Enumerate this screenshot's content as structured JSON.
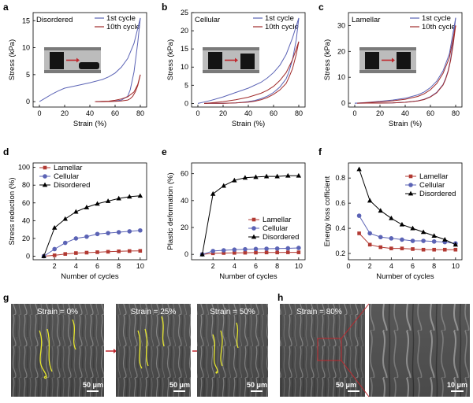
{
  "colors": {
    "lamellar": "#b23a33",
    "cellular": "#5b63b5",
    "disordered": "#000000",
    "first_cycle": "#5b63b5",
    "tenth_cycle": "#a02a2a",
    "arrow": "#c0272d",
    "highlight": "#e6e62e"
  },
  "panels_top": [
    {
      "letter": "a",
      "title": "Disordered",
      "xlabel": "Strain (%)",
      "ylabel": "Stress (kPa)",
      "xlim": [
        -5,
        85
      ],
      "ylim": [
        -1,
        16.5
      ],
      "xticks": [
        0,
        20,
        40,
        60,
        80
      ],
      "yticks": [
        0,
        5,
        10,
        15
      ],
      "legend": [
        "1st cycle",
        "10th cycle"
      ]
    },
    {
      "letter": "b",
      "title": "Cellular",
      "xlabel": "Strain (%)",
      "ylabel": "Stress (kPa)",
      "xlim": [
        -5,
        85
      ],
      "ylim": [
        -1,
        25
      ],
      "xticks": [
        0,
        20,
        40,
        60,
        80
      ],
      "yticks": [
        0,
        5,
        10,
        15,
        20,
        25
      ],
      "legend": [
        "1st cycle",
        "10th cycle"
      ]
    },
    {
      "letter": "c",
      "title": "Lamellar",
      "xlabel": "Strain (%)",
      "ylabel": "Stress (kPa)",
      "xlim": [
        -5,
        85
      ],
      "ylim": [
        -1.5,
        35
      ],
      "xticks": [
        0,
        20,
        40,
        60,
        80
      ],
      "yticks": [
        0,
        10,
        20,
        30
      ],
      "legend": [
        "1st cycle",
        "10th cycle"
      ]
    }
  ],
  "panels_mid": [
    {
      "letter": "d",
      "xlabel": "Number of cycles",
      "ylabel": "Stress reduction (%)",
      "xlim": [
        0,
        10.6
      ],
      "ylim": [
        -4,
        105
      ],
      "xticks": [
        2,
        4,
        6,
        8,
        10
      ],
      "yticks": [
        0,
        20,
        40,
        60,
        80,
        100
      ],
      "legend": [
        "Lamellar",
        "Cellular",
        "Disordered"
      ]
    },
    {
      "letter": "e",
      "xlabel": "Number of cycles",
      "ylabel": "Plastic deformation (%)",
      "xlim": [
        0,
        10.6
      ],
      "ylim": [
        -4,
        68
      ],
      "xticks": [
        2,
        4,
        6,
        8,
        10
      ],
      "yticks": [
        0,
        20,
        40,
        60
      ],
      "legend": [
        "Lamellar",
        "Cellular",
        "Disordered"
      ]
    },
    {
      "letter": "f",
      "xlabel": "Number of cycles",
      "ylabel": "Energy loss cofficient",
      "xlim": [
        0,
        10.6
      ],
      "ylim": [
        0.15,
        0.92
      ],
      "xticks": [
        0,
        2,
        4,
        6,
        8,
        10
      ],
      "yticks": [
        0.2,
        0.4,
        0.6,
        0.8
      ],
      "legend": [
        "Lamellar",
        "Cellular",
        "Disordered"
      ]
    }
  ],
  "chart_data": [
    {
      "type": "line",
      "panel": "a",
      "title": "Disordered",
      "xlabel": "Strain (%)",
      "ylabel": "Stress (kPa)",
      "series": [
        {
          "name": "1st cycle",
          "loading": {
            "x": [
              0,
              5,
              10,
              15,
              20,
              30,
              40,
              50,
              55,
              60,
              65,
              70,
              75,
              80
            ],
            "y": [
              0,
              0.7,
              1.4,
              2.0,
              2.5,
              3.0,
              3.5,
              4.1,
              4.6,
              5.3,
              6.4,
              8.0,
              10.8,
              15.5
            ]
          },
          "unloading": {
            "x": [
              80,
              78,
              75,
              72,
              70,
              65,
              60,
              55,
              50,
              45
            ],
            "y": [
              15.5,
              11.0,
              5.5,
              2.2,
              1.0,
              0.3,
              0.1,
              0.03,
              0,
              0
            ]
          }
        },
        {
          "name": "10th cycle",
          "loading": {
            "x": [
              44,
              50,
              55,
              60,
              65,
              70,
              75,
              78,
              80
            ],
            "y": [
              0,
              0.05,
              0.1,
              0.25,
              0.5,
              0.9,
              1.8,
              3.2,
              5.0
            ]
          },
          "unloading": {
            "x": [
              80,
              78,
              76,
              74,
              72,
              70,
              65,
              60,
              55,
              50,
              45
            ],
            "y": [
              5.0,
              3.0,
              1.8,
              1.0,
              0.55,
              0.3,
              0.12,
              0.05,
              0.02,
              0,
              0
            ]
          }
        }
      ],
      "legend_position": "top-right"
    },
    {
      "type": "line",
      "panel": "b",
      "title": "Cellular",
      "xlabel": "Strain (%)",
      "ylabel": "Stress (kPa)",
      "series": [
        {
          "name": "1st cycle",
          "loading": {
            "x": [
              0,
              10,
              20,
              30,
              40,
              50,
              55,
              60,
              65,
              70,
              75,
              80
            ],
            "y": [
              0,
              0.8,
              1.8,
              3.0,
              4.2,
              5.8,
              7.0,
              8.5,
              10.5,
              13.5,
              18.0,
              23.5
            ]
          },
          "unloading": {
            "x": [
              80,
              78,
              75,
              72,
              70,
              65,
              60,
              55,
              50,
              45,
              40,
              35,
              30,
              20,
              10,
              5
            ],
            "y": [
              23.5,
              17.5,
              12.0,
              8.5,
              6.8,
              4.5,
              3.0,
              2.0,
              1.3,
              0.8,
              0.5,
              0.3,
              0.15,
              0.05,
              0.02,
              0
            ]
          }
        },
        {
          "name": "10th cycle",
          "loading": {
            "x": [
              5,
              10,
              20,
              30,
              40,
              50,
              55,
              60,
              65,
              70,
              75,
              80
            ],
            "y": [
              0,
              0.15,
              0.5,
              1.0,
              1.7,
              2.8,
              3.6,
              4.7,
              6.3,
              8.5,
              12.0,
              17.0
            ]
          },
          "unloading": {
            "x": [
              80,
              78,
              75,
              72,
              70,
              65,
              60,
              55,
              50,
              45,
              40,
              30,
              20,
              10,
              5
            ],
            "y": [
              17.0,
              13.5,
              9.5,
              7.0,
              5.5,
              3.7,
              2.5,
              1.6,
              1.0,
              0.6,
              0.35,
              0.12,
              0.04,
              0.01,
              0
            ]
          }
        }
      ],
      "legend_position": "top-right"
    },
    {
      "type": "line",
      "panel": "c",
      "title": "Lamellar",
      "xlabel": "Strain (%)",
      "ylabel": "Stress (kPa)",
      "series": [
        {
          "name": "1st cycle",
          "loading": {
            "x": [
              0,
              10,
              20,
              30,
              40,
              50,
              55,
              60,
              65,
              70,
              75,
              80
            ],
            "y": [
              0,
              0.3,
              0.7,
              1.2,
              1.9,
              3.2,
              4.3,
              6.0,
              8.5,
              12.5,
              19.0,
              33.0
            ]
          },
          "unloading": {
            "x": [
              80,
              78,
              76,
              74,
              72,
              70,
              65,
              60,
              55,
              50,
              40,
              30,
              20,
              10,
              0
            ],
            "y": [
              33.0,
              24.0,
              17.0,
              12.5,
              9.5,
              7.2,
              4.2,
              2.5,
              1.5,
              0.9,
              0.35,
              0.12,
              0.04,
              0.01,
              0
            ]
          }
        },
        {
          "name": "10th cycle",
          "loading": {
            "x": [
              2,
              10,
              20,
              30,
              40,
              50,
              55,
              60,
              65,
              70,
              75,
              80
            ],
            "y": [
              0,
              0.2,
              0.5,
              0.9,
              1.5,
              2.6,
              3.6,
              5.2,
              7.6,
              11.5,
              17.5,
              30.0
            ]
          },
          "unloading": {
            "x": [
              80,
              78,
              76,
              74,
              72,
              70,
              65,
              60,
              55,
              50,
              40,
              30,
              20,
              10,
              2
            ],
            "y": [
              30.0,
              22.5,
              16.5,
              12.2,
              9.2,
              7.0,
              4.0,
              2.4,
              1.4,
              0.85,
              0.33,
              0.11,
              0.03,
              0.01,
              0
            ]
          }
        }
      ],
      "legend_position": "top-right"
    },
    {
      "type": "line",
      "panel": "d",
      "xlabel": "Number of cycles",
      "ylabel": "Stress reduction (%)",
      "x": [
        1,
        2,
        3,
        4,
        5,
        6,
        7,
        8,
        9,
        10
      ],
      "series": [
        {
          "name": "Lamellar",
          "marker": "square",
          "values": [
            0,
            1,
            2.5,
            3.5,
            4,
            4.5,
            5,
            5.5,
            5.8,
            6
          ]
        },
        {
          "name": "Cellular",
          "marker": "circle",
          "values": [
            0,
            8,
            15,
            20,
            22,
            25,
            26,
            27,
            28,
            29
          ]
        },
        {
          "name": "Disordered",
          "marker": "triangle",
          "values": [
            0,
            32,
            42,
            50,
            55,
            59,
            62,
            65,
            67,
            68
          ]
        }
      ],
      "legend_position": "top-left"
    },
    {
      "type": "line",
      "panel": "e",
      "xlabel": "Number of cycles",
      "ylabel": "Plastic deformation (%)",
      "x": [
        1,
        2,
        3,
        4,
        5,
        6,
        7,
        8,
        9,
        10
      ],
      "series": [
        {
          "name": "Lamellar",
          "marker": "square",
          "values": [
            0,
            0.8,
            1.0,
            1.1,
            1.2,
            1.3,
            1.4,
            1.4,
            1.5,
            1.5
          ]
        },
        {
          "name": "Cellular",
          "marker": "circle",
          "values": [
            0,
            2.5,
            3.0,
            3.5,
            3.8,
            4.0,
            4.2,
            4.3,
            4.5,
            4.8
          ]
        },
        {
          "name": "Disordered",
          "marker": "triangle",
          "values": [
            0,
            45,
            51,
            55,
            57,
            57.5,
            58,
            58,
            58.5,
            58.5
          ]
        }
      ],
      "legend_position": "center-right"
    },
    {
      "type": "line",
      "panel": "f",
      "xlabel": "Number of cycles",
      "ylabel": "Energy loss cofficient",
      "x": [
        1,
        2,
        3,
        4,
        5,
        6,
        7,
        8,
        9,
        10
      ],
      "series": [
        {
          "name": "Lamellar",
          "marker": "square",
          "values": [
            0.36,
            0.27,
            0.25,
            0.24,
            0.24,
            0.235,
            0.23,
            0.23,
            0.23,
            0.23
          ]
        },
        {
          "name": "Cellular",
          "marker": "circle",
          "values": [
            0.5,
            0.36,
            0.33,
            0.32,
            0.31,
            0.3,
            0.3,
            0.295,
            0.29,
            0.28
          ]
        },
        {
          "name": "Disordered",
          "marker": "triangle",
          "values": [
            0.87,
            0.62,
            0.54,
            0.48,
            0.43,
            0.4,
            0.37,
            0.34,
            0.31,
            0.27
          ]
        }
      ],
      "legend_position": "top-right"
    }
  ],
  "micrographs": {
    "g": {
      "letter": "g",
      "panels": [
        {
          "label": "Strain = 0%",
          "scale": "50 μm"
        },
        {
          "label": "Strain = 25%",
          "scale": "50 μm"
        },
        {
          "label": "Strain = 50%",
          "scale": "50 μm"
        }
      ]
    },
    "h": {
      "letter": "h",
      "panels": [
        {
          "label": "Strain = 80%",
          "scale": "50 μm"
        },
        {
          "label": "",
          "scale": "10 μm"
        }
      ]
    }
  }
}
